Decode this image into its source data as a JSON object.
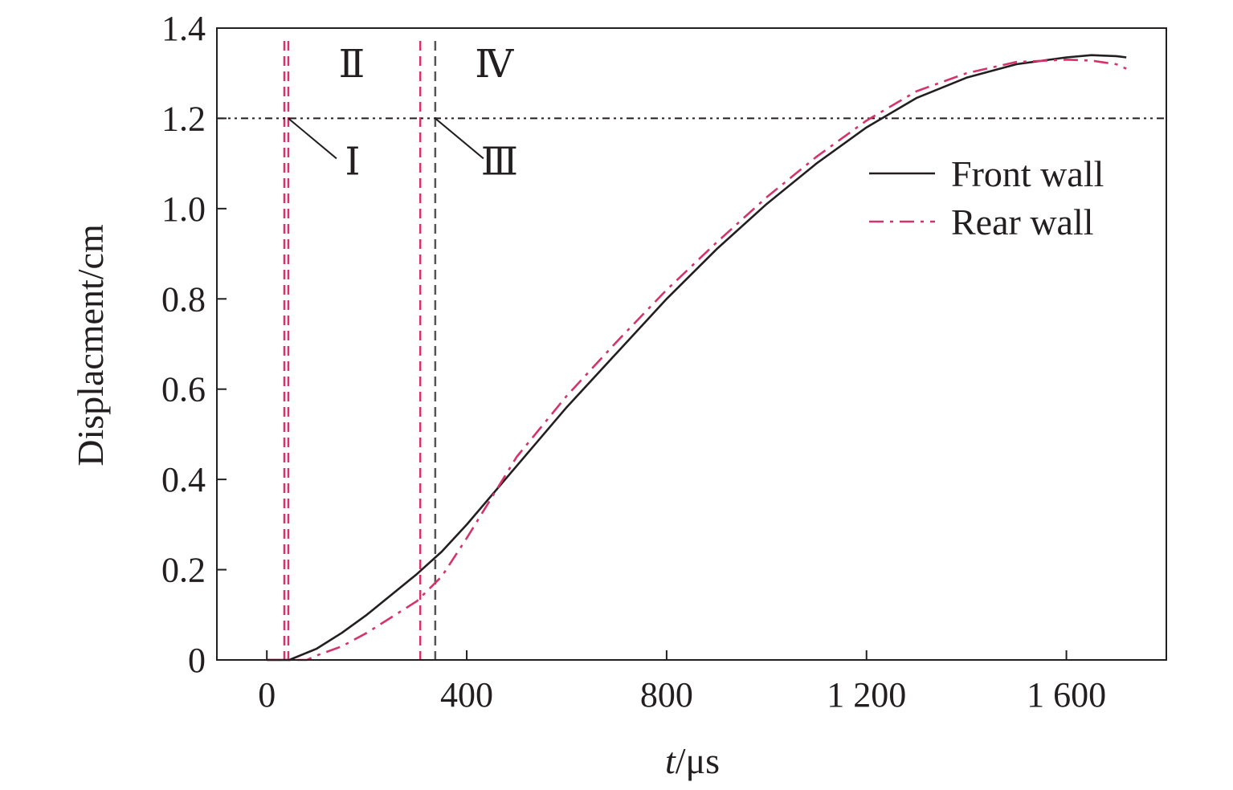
{
  "chart_data": {
    "type": "line",
    "xlabel_italic": "t",
    "xlabel_unit": "/μs",
    "ylabel": "Displacment/cm",
    "xlim": [
      -100,
      1800
    ],
    "ylim": [
      0,
      1.4
    ],
    "x_ticks": [
      0,
      400,
      800,
      1200,
      1600
    ],
    "x_tick_labels": [
      "0",
      "400",
      "800",
      "1 200",
      "1 600"
    ],
    "y_ticks": [
      0,
      0.2,
      0.4,
      0.6,
      0.8,
      1.0,
      1.2,
      1.4
    ],
    "y_tick_labels": [
      "0",
      "0.2",
      "0.4",
      "0.6",
      "0.8",
      "1.0",
      "1.2",
      "1.4"
    ],
    "grid": false,
    "legend_position": "top-right",
    "series": [
      {
        "name": "Front wall",
        "style": "solid",
        "color": "#231f20",
        "x": [
          0,
          45,
          100,
          150,
          200,
          250,
          300,
          350,
          400,
          450,
          500,
          600,
          700,
          800,
          900,
          1000,
          1100,
          1200,
          1300,
          1400,
          1500,
          1600,
          1650,
          1700,
          1720
        ],
        "y": [
          0,
          0,
          0.025,
          0.06,
          0.1,
          0.145,
          0.19,
          0.24,
          0.3,
          0.365,
          0.43,
          0.56,
          0.68,
          0.8,
          0.91,
          1.01,
          1.1,
          1.18,
          1.245,
          1.29,
          1.32,
          1.335,
          1.34,
          1.338,
          1.335
        ]
      },
      {
        "name": "Rear wall",
        "style": "dash-dot",
        "color": "#d6336c",
        "x": [
          0,
          80,
          100,
          150,
          200,
          250,
          300,
          350,
          400,
          450,
          500,
          600,
          700,
          800,
          900,
          1000,
          1100,
          1200,
          1300,
          1400,
          1500,
          1600,
          1650,
          1700,
          1720
        ],
        "y": [
          0,
          0,
          0.01,
          0.03,
          0.06,
          0.095,
          0.13,
          0.185,
          0.27,
          0.36,
          0.45,
          0.585,
          0.705,
          0.82,
          0.925,
          1.025,
          1.115,
          1.195,
          1.26,
          1.3,
          1.325,
          1.33,
          1.328,
          1.32,
          1.31
        ]
      }
    ],
    "threshold": {
      "y": 1.2,
      "style": "dash-dot-dot",
      "color": "#231f20"
    },
    "vertical_markers": [
      {
        "x": 35,
        "color": "#d6336c"
      },
      {
        "x": 43,
        "color": "#d6336c"
      },
      {
        "x": 307,
        "color": "#d6336c"
      },
      {
        "x": 337,
        "color": "#555555"
      }
    ],
    "regions": [
      {
        "label": "Ⅰ",
        "kind": "pointer",
        "anchor_x": 43,
        "anchor_y": 1.2
      },
      {
        "label": "Ⅱ",
        "kind": "area",
        "x": 170,
        "y": 1.32
      },
      {
        "label": "Ⅲ",
        "kind": "pointer",
        "anchor_x": 337,
        "anchor_y": 1.2
      },
      {
        "label": "Ⅳ",
        "kind": "area",
        "x": 455,
        "y": 1.32
      }
    ]
  }
}
